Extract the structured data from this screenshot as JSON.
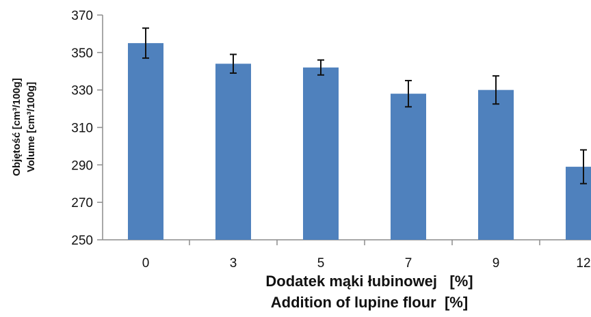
{
  "chart_data": {
    "type": "bar",
    "categories": [
      "0",
      "3",
      "5",
      "7",
      "9",
      "12"
    ],
    "values": [
      355,
      344,
      342,
      328,
      330,
      289
    ],
    "errors": [
      8,
      5,
      4,
      7,
      7.5,
      9
    ],
    "ylim": [
      250,
      370
    ],
    "yticks": [
      250,
      270,
      290,
      310,
      330,
      350,
      370
    ],
    "ylabel_lines": [
      "Objętość [cm³/100g]",
      "Volume [cm³/100g]"
    ],
    "xlabel_lines": [
      "Dodatek mąki łubinowej   [%]",
      "Addition of lupine flour  [%]"
    ],
    "bar_color": "#4f81bd",
    "grid": false
  }
}
